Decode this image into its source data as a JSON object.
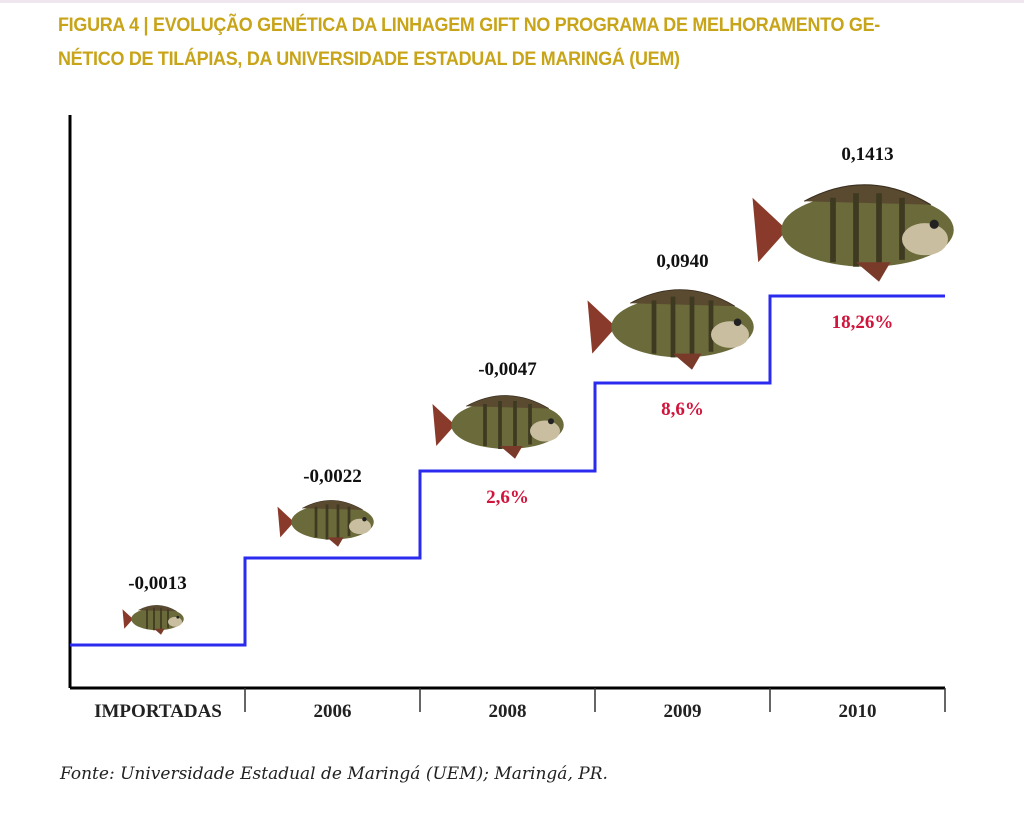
{
  "chart_data": {
    "type": "line",
    "title": "FIGURA 4 | EVOLUÇÃO GENÉTICA DA LINHAGEM GIFT NO PROGRAMA DE MELHORAMENTO GE- NÉTICO DE TILÁPIAS, DA UNIVERSIDADE ESTADUAL DE MARINGÁ (UEM)",
    "title_lines": [
      "FIGURA 4 | EVOLUÇÃO GENÉTICA DA LINHAGEM GIFT NO PROGRAMA DE MELHORAMENTO GE-",
      "NÉTICO DE TILÁPIAS, DA UNIVERSIDADE ESTADUAL DE MARINGÁ (UEM)"
    ],
    "style": "step",
    "categories": [
      "IMPORTADAS",
      "2006",
      "2008",
      "2009",
      "2010"
    ],
    "values": [
      -0.0013,
      -0.0022,
      -0.0047,
      0.094,
      0.1413
    ],
    "value_labels": [
      "-0,0013",
      "-0,0022",
      "-0,0047",
      "0,0940",
      "0,1413"
    ],
    "gain_labels": [
      "",
      "",
      "2,6%",
      "8,6%",
      "18,26%"
    ],
    "xlabel": "",
    "ylabel": "",
    "grid": false,
    "colors": {
      "step_line": "#2b2bf0",
      "gain_label": "#d0143c",
      "title": "#c8a418",
      "axis": "#000000"
    },
    "icon": "tilapia-fish-icon",
    "source": "Fonte: Universidade Estadual de Maringá (UEM); Maringá, PR."
  }
}
